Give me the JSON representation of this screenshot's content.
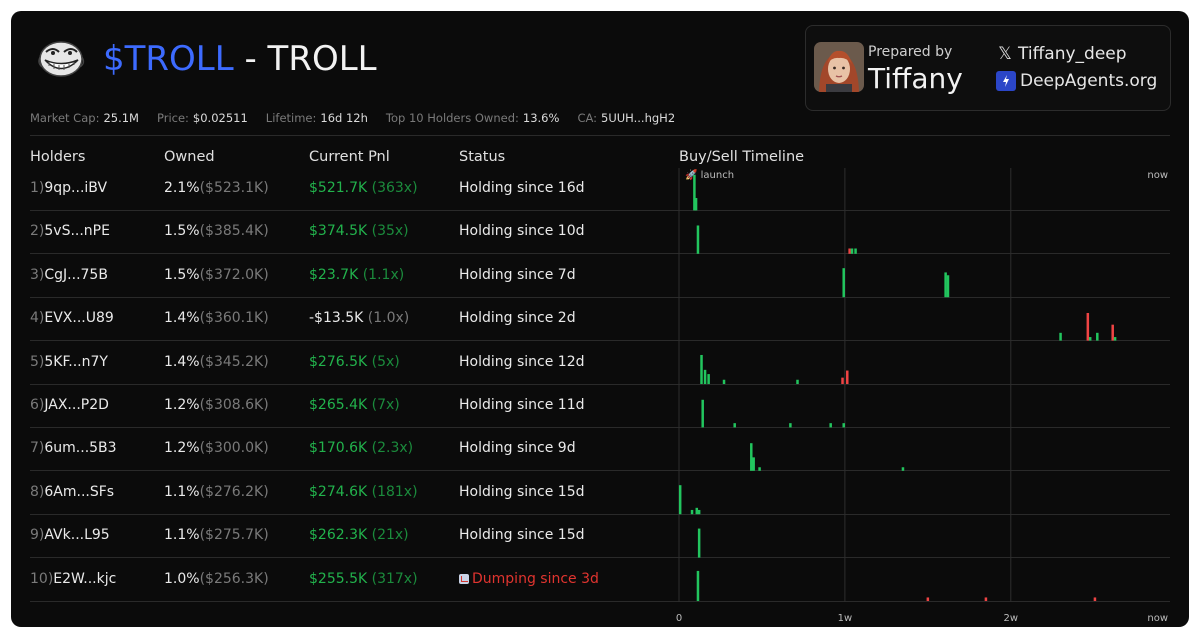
{
  "header": {
    "ticker": "$TROLL",
    "name_suffix": "- TROLL",
    "logo_icon": "troll-face-icon"
  },
  "prepared": {
    "label": "Prepared by",
    "name": "Tiffany",
    "twitter_handle": "Tiffany_deep",
    "website": "DeepAgents.org",
    "twitter_icon": "x-logo-icon",
    "website_icon": "deepagents-logo-icon"
  },
  "metrics": [
    {
      "label": "Market Cap:",
      "value": "25.1M"
    },
    {
      "label": "Price:",
      "value": "$0.02511"
    },
    {
      "label": "Lifetime:",
      "value": "16d 12h"
    },
    {
      "label": "Top 10 Holders Owned:",
      "value": "13.6%"
    },
    {
      "label": "CA:",
      "value": "5UUH...hgH2"
    }
  ],
  "columns": {
    "holders": "Holders",
    "owned": "Owned",
    "pnl": "Current Pnl",
    "status": "Status",
    "timeline": "Buy/Sell Timeline"
  },
  "colors": {
    "accent": "#3d6bff",
    "buy": "#22c55e",
    "sell": "#ef4444",
    "pnl_positive": "#22b24c"
  },
  "holders": [
    {
      "index": "1)",
      "address": "9qp...iBV",
      "owned_pct": "2.1%",
      "owned_usd": "($523.1K)",
      "pnl": "$521.7K",
      "pnl_mult": "(363x)",
      "pnl_sign": "pos",
      "status": "Holding since 16d",
      "dumping": false
    },
    {
      "index": "2)",
      "address": "5vS...nPE",
      "owned_pct": "1.5%",
      "owned_usd": "($385.4K)",
      "pnl": "$374.5K",
      "pnl_mult": "(35x)",
      "pnl_sign": "pos",
      "status": "Holding since 10d",
      "dumping": false
    },
    {
      "index": "3)",
      "address": "CgJ...75B",
      "owned_pct": "1.5%",
      "owned_usd": "($372.0K)",
      "pnl": "$23.7K",
      "pnl_mult": "(1.1x)",
      "pnl_sign": "pos",
      "status": "Holding since 7d",
      "dumping": false
    },
    {
      "index": "4)",
      "address": "EVX...U89",
      "owned_pct": "1.4%",
      "owned_usd": "($360.1K)",
      "pnl": "-$13.5K",
      "pnl_mult": "(1.0x)",
      "pnl_sign": "neg",
      "status": "Holding since 2d",
      "dumping": false
    },
    {
      "index": "5)",
      "address": "5KF...n7Y",
      "owned_pct": "1.4%",
      "owned_usd": "($345.2K)",
      "pnl": "$276.5K",
      "pnl_mult": "(5x)",
      "pnl_sign": "pos",
      "status": "Holding since 12d",
      "dumping": false
    },
    {
      "index": "6)",
      "address": "JAX...P2D",
      "owned_pct": "1.2%",
      "owned_usd": "($308.6K)",
      "pnl": "$265.4K",
      "pnl_mult": "(7x)",
      "pnl_sign": "pos",
      "status": "Holding since 11d",
      "dumping": false
    },
    {
      "index": "7)",
      "address": "6um...5B3",
      "owned_pct": "1.2%",
      "owned_usd": "($300.0K)",
      "pnl": "$170.6K",
      "pnl_mult": "(2.3x)",
      "pnl_sign": "pos",
      "status": "Holding since 9d",
      "dumping": false
    },
    {
      "index": "8)",
      "address": "6Am...SFs",
      "owned_pct": "1.1%",
      "owned_usd": "($276.2K)",
      "pnl": "$274.6K",
      "pnl_mult": "(181x)",
      "pnl_sign": "pos",
      "status": "Holding since 15d",
      "dumping": false
    },
    {
      "index": "9)",
      "address": "AVk...L95",
      "owned_pct": "1.1%",
      "owned_usd": "($275.7K)",
      "pnl": "$262.3K",
      "pnl_mult": "(21x)",
      "pnl_sign": "pos",
      "status": "Holding since 15d",
      "dumping": false
    },
    {
      "index": "10)",
      "address": "E2W...kjc",
      "owned_pct": "1.0%",
      "owned_usd": "($256.3K)",
      "pnl": "$255.5K",
      "pnl_mult": "(317x)",
      "pnl_sign": "pos",
      "status": "Dumping since 3d",
      "dumping": true
    }
  ],
  "chart_data": {
    "type": "bar",
    "x_unit": "days since launch",
    "xlim": [
      0,
      16.5
    ],
    "launch_label": "🚀 launch",
    "top_right_label": "now",
    "ticks": [
      {
        "value": 0,
        "label": "0"
      },
      {
        "value": 7,
        "label": "1w"
      },
      {
        "value": 14,
        "label": "2w"
      },
      {
        "value": 16.5,
        "label": "now"
      }
    ],
    "rows": [
      {
        "holder": "9qp...iBV",
        "events": [
          {
            "t": 0.65,
            "type": "buy",
            "size": 1.0
          },
          {
            "t": 0.72,
            "type": "buy",
            "size": 0.35
          }
        ]
      },
      {
        "holder": "5vS...nPE",
        "events": [
          {
            "t": 0.8,
            "type": "buy",
            "size": 0.8
          },
          {
            "t": 7.2,
            "type": "sell",
            "size": 0.15
          },
          {
            "t": 7.3,
            "type": "buy",
            "size": 0.15
          },
          {
            "t": 7.45,
            "type": "buy",
            "size": 0.15
          }
        ]
      },
      {
        "holder": "CgJ...75B",
        "events": [
          {
            "t": 6.95,
            "type": "buy",
            "size": 0.82
          },
          {
            "t": 11.25,
            "type": "buy",
            "size": 0.7
          },
          {
            "t": 11.35,
            "type": "buy",
            "size": 0.62
          }
        ]
      },
      {
        "holder": "EVX...U89",
        "events": [
          {
            "t": 16.1,
            "type": "buy",
            "size": 0.22
          },
          {
            "t": 17.25,
            "type": "sell",
            "size": 0.78
          },
          {
            "t": 17.35,
            "type": "buy",
            "size": 0.1
          },
          {
            "t": 17.65,
            "type": "buy",
            "size": 0.22
          },
          {
            "t": 18.3,
            "type": "sell",
            "size": 0.45
          },
          {
            "t": 18.4,
            "type": "buy",
            "size": 0.1
          }
        ]
      },
      {
        "holder": "5KF...n7Y",
        "events": [
          {
            "t": 0.95,
            "type": "buy",
            "size": 0.82
          },
          {
            "t": 1.1,
            "type": "buy",
            "size": 0.4
          },
          {
            "t": 1.25,
            "type": "buy",
            "size": 0.28
          },
          {
            "t": 1.9,
            "type": "buy",
            "size": 0.12
          },
          {
            "t": 5.0,
            "type": "buy",
            "size": 0.12
          },
          {
            "t": 6.9,
            "type": "sell",
            "size": 0.18
          },
          {
            "t": 7.1,
            "type": "sell",
            "size": 0.38
          }
        ]
      },
      {
        "holder": "JAX...P2D",
        "events": [
          {
            "t": 1.0,
            "type": "buy",
            "size": 0.78
          },
          {
            "t": 2.35,
            "type": "buy",
            "size": 0.12
          },
          {
            "t": 4.7,
            "type": "buy",
            "size": 0.12
          },
          {
            "t": 6.4,
            "type": "buy",
            "size": 0.12
          },
          {
            "t": 6.95,
            "type": "buy",
            "size": 0.12
          }
        ]
      },
      {
        "holder": "6um...5B3",
        "events": [
          {
            "t": 3.05,
            "type": "buy",
            "size": 0.78
          },
          {
            "t": 3.15,
            "type": "buy",
            "size": 0.38
          },
          {
            "t": 3.4,
            "type": "buy",
            "size": 0.1
          },
          {
            "t": 9.45,
            "type": "buy",
            "size": 0.1
          }
        ]
      },
      {
        "holder": "6Am...SFs",
        "events": [
          {
            "t": 0.05,
            "type": "buy",
            "size": 0.82
          },
          {
            "t": 0.55,
            "type": "buy",
            "size": 0.12
          },
          {
            "t": 0.75,
            "type": "buy",
            "size": 0.18
          },
          {
            "t": 0.85,
            "type": "buy",
            "size": 0.12
          }
        ]
      },
      {
        "holder": "AVk...L95",
        "events": [
          {
            "t": 0.85,
            "type": "buy",
            "size": 0.82
          }
        ]
      },
      {
        "holder": "E2W...kjc",
        "events": [
          {
            "t": 0.8,
            "type": "buy",
            "size": 0.85
          },
          {
            "t": 10.5,
            "type": "sell",
            "size": 0.1
          },
          {
            "t": 12.95,
            "type": "sell",
            "size": 0.1
          },
          {
            "t": 17.55,
            "type": "sell",
            "size": 0.1
          }
        ]
      }
    ]
  }
}
